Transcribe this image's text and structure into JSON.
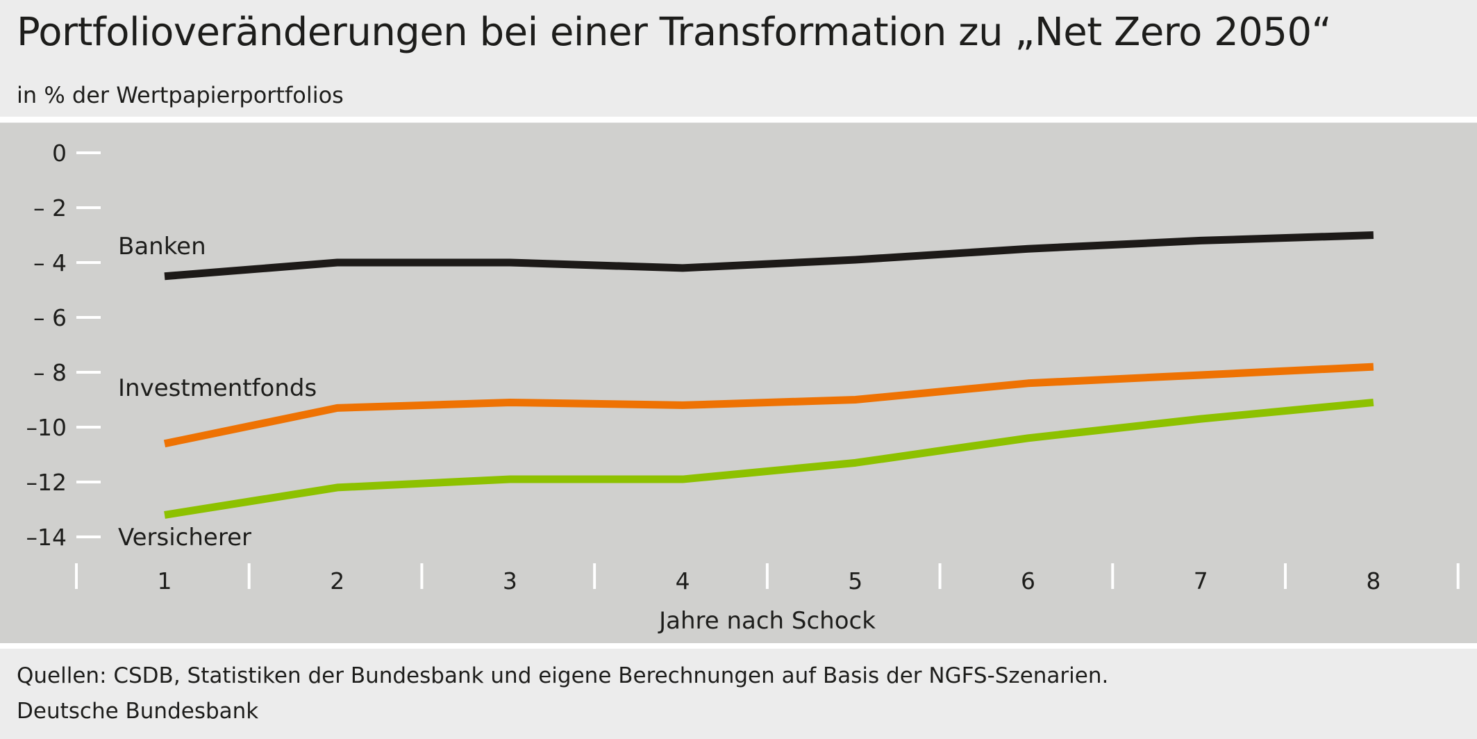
{
  "title": "Portfolioveränderungen bei einer Transformation zu „Net Zero 2050“",
  "subtitle": "in % der Wertpapierportfolios",
  "footer": {
    "source": "Quellen: CSDB, Statistiken der Bundesbank und eigene Berechnungen auf Basis der NGFS-Szenarien.",
    "publisher": "Deutsche Bundesbank"
  },
  "chart_data": {
    "type": "line",
    "title": "Portfolioveränderungen bei einer Transformation zu „Net Zero 2050“",
    "subtitle": "in % der Wertpapierportfolios",
    "xlabel": "Jahre nach Schock",
    "ylabel": "",
    "x": [
      1,
      2,
      3,
      4,
      5,
      6,
      7,
      8
    ],
    "ylim": [
      -14,
      0
    ],
    "yticks": [
      0,
      -2,
      -4,
      -6,
      -8,
      -10,
      -12,
      -14
    ],
    "ytick_labels": [
      "0",
      "– 2",
      "– 4",
      "– 6",
      "– 8",
      "–10",
      "–12",
      "–14"
    ],
    "grid": false,
    "legend": "inline labels left",
    "series": [
      {
        "name": "Banken",
        "color": "#1d1a18",
        "values": [
          -4.5,
          -4.0,
          -4.0,
          -4.2,
          -3.9,
          -3.5,
          -3.2,
          -3.0
        ]
      },
      {
        "name": "Investmentfonds",
        "color": "#ee7203",
        "values": [
          -10.6,
          -9.3,
          -9.1,
          -9.2,
          -9.0,
          -8.4,
          -8.1,
          -7.8
        ]
      },
      {
        "name": "Versicherer",
        "color": "#8dc100",
        "values": [
          -13.2,
          -12.2,
          -11.9,
          -11.9,
          -11.3,
          -10.4,
          -9.7,
          -9.1
        ]
      }
    ]
  }
}
